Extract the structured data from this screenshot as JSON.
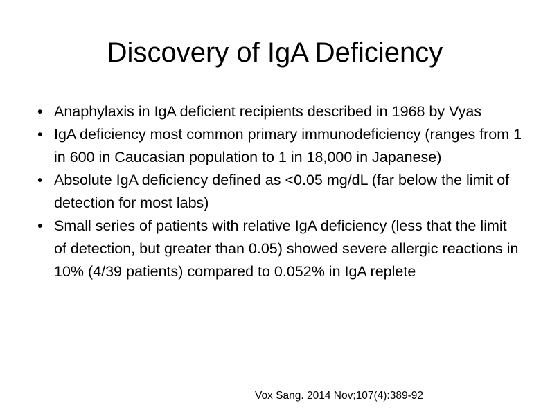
{
  "slide": {
    "title": "Discovery of IgA Deficiency",
    "bullet_marker": "•",
    "bullets": [
      {
        "text": "Anaphylaxis in IgA deficient recipients described in 1968 by Vyas"
      },
      {
        "text": "IgA deficiency most common primary immunodeficiency (ranges from 1 in 600 in Caucasian population to 1 in 18,000 in Japanese)"
      },
      {
        "text": "Absolute IgA deficiency defined as <0.05 mg/dL (far below the limit of detection for most labs)"
      },
      {
        "text": "Small series of patients with relative IgA deficiency (less that the limit of detection, but greater than 0.05) showed severe allergic reactions in 10% (4/39 patients) compared to 0.052% in IgA replete"
      }
    ],
    "citation": "Vox Sang. 2014 Nov;107(4):389-92"
  }
}
